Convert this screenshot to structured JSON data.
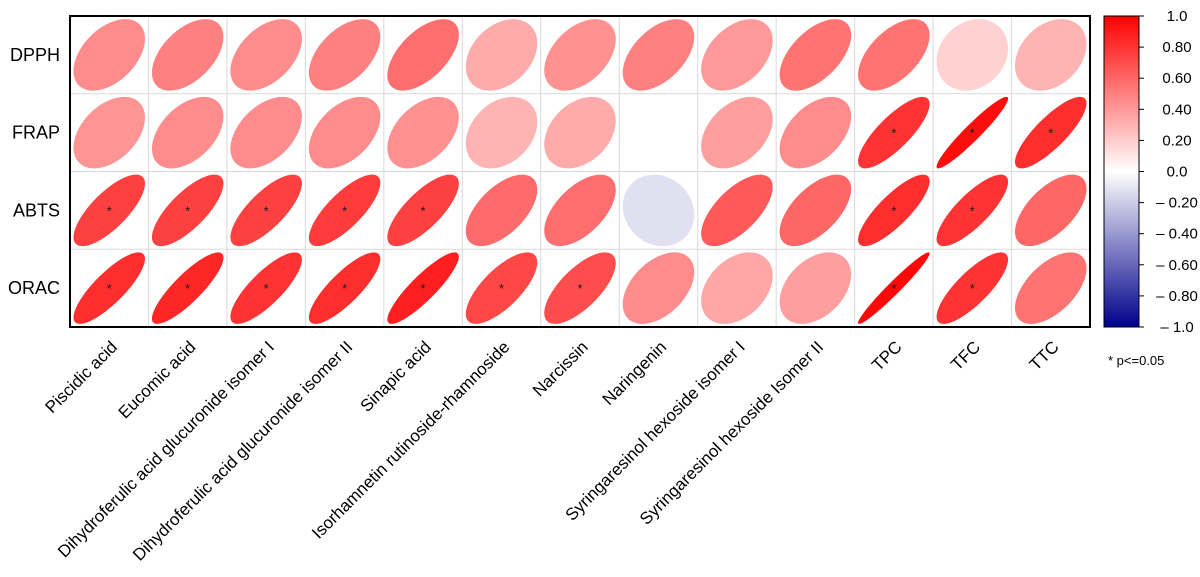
{
  "chart_data": {
    "type": "correlation-ellipse-heatmap",
    "rows": [
      "DPPH",
      "FRAP",
      "ABTS",
      "ORAC"
    ],
    "columns": [
      "Piscidic acid",
      "Eucomic acid",
      "Dihydroferulic acid glucuronide isomer I",
      "Dihydroferulic acid glucuronide isomer II",
      "Sinapic acid",
      "Isorhamnetin rutinoside-rhamnoside",
      "Narcissin",
      "Naringenin",
      "Syringaresinol hexoside isomer I",
      "Syringaresinol hexoside Isomer II",
      "TPC",
      "TFC",
      "TTC"
    ],
    "values": [
      [
        0.45,
        0.5,
        0.45,
        0.5,
        0.57,
        0.33,
        0.43,
        0.5,
        0.4,
        0.55,
        0.55,
        0.18,
        0.3
      ],
      [
        0.42,
        0.45,
        0.45,
        0.45,
        0.43,
        0.3,
        0.33,
        0.0,
        0.38,
        0.45,
        0.8,
        0.95,
        0.82
      ],
      [
        0.75,
        0.75,
        0.75,
        0.77,
        0.75,
        0.58,
        0.57,
        -0.12,
        0.65,
        0.6,
        0.82,
        0.8,
        0.6
      ],
      [
        0.82,
        0.85,
        0.8,
        0.82,
        0.88,
        0.72,
        0.7,
        0.45,
        0.35,
        0.38,
        0.97,
        0.8,
        0.55
      ]
    ],
    "significant": [
      [
        false,
        false,
        false,
        false,
        false,
        false,
        false,
        false,
        false,
        false,
        false,
        false,
        false
      ],
      [
        false,
        false,
        false,
        false,
        false,
        false,
        false,
        false,
        false,
        false,
        true,
        true,
        true
      ],
      [
        true,
        true,
        true,
        true,
        true,
        false,
        false,
        false,
        false,
        false,
        true,
        true,
        false
      ],
      [
        true,
        true,
        true,
        true,
        true,
        true,
        true,
        false,
        false,
        false,
        true,
        true,
        false
      ]
    ],
    "significance_symbol": "*",
    "significance_note": "* p<=0.05",
    "colorbar": {
      "range": [
        -1.0,
        1.0
      ],
      "ticks": [
        "1.0",
        "0.80",
        "0.60",
        "0.40",
        "0.20",
        "0.0",
        "– 0.20",
        "– 0.40",
        "– 0.60",
        "– 0.80",
        "– 1.0"
      ],
      "tick_values": [
        1.0,
        0.8,
        0.6,
        0.4,
        0.2,
        0.0,
        -0.2,
        -0.4,
        -0.6,
        -0.8,
        -1.0
      ],
      "colors": {
        "negative": "#00008b",
        "zero": "#ffffff",
        "positive": "#ff0000"
      }
    },
    "title": "",
    "xlabel": "",
    "ylabel": ""
  }
}
